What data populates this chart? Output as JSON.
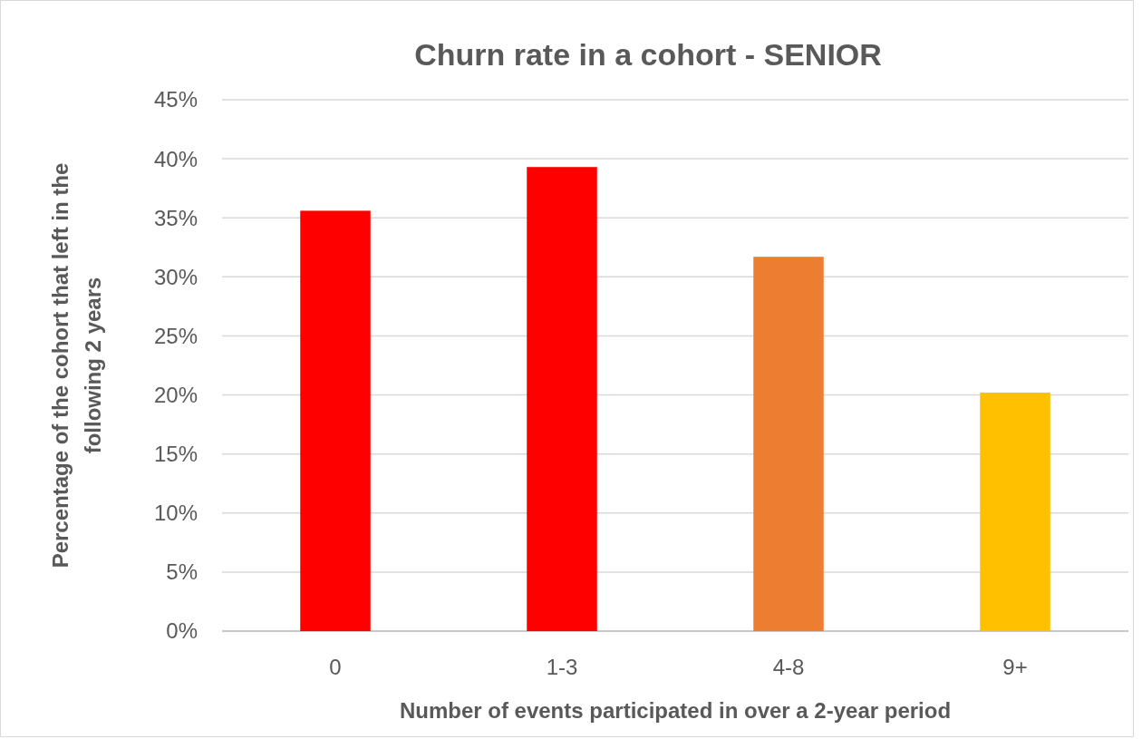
{
  "chart_data": {
    "type": "bar",
    "title": "Churn rate in a cohort - SENIOR",
    "xlabel": "Number of events participated in over a 2-year period",
    "ylabel": "Percentage of the cohort that left in the following 2 years",
    "categories": [
      "0",
      "1-3",
      "4-8",
      "9+"
    ],
    "values": [
      35.6,
      39.3,
      31.7,
      20.2
    ],
    "colors": [
      "#ff0000",
      "#ff0000",
      "#ed7d31",
      "#ffc000"
    ],
    "ylim": [
      0,
      45
    ],
    "yticks": [
      {
        "value": 0,
        "label": "0%"
      },
      {
        "value": 5,
        "label": "5%"
      },
      {
        "value": 10,
        "label": "10%"
      },
      {
        "value": 15,
        "label": "15%"
      },
      {
        "value": 20,
        "label": "20%"
      },
      {
        "value": 25,
        "label": "25%"
      },
      {
        "value": 30,
        "label": "30%"
      },
      {
        "value": 35,
        "label": "35%"
      },
      {
        "value": 40,
        "label": "40%"
      },
      {
        "value": 45,
        "label": "45%"
      }
    ],
    "grid": "y"
  }
}
